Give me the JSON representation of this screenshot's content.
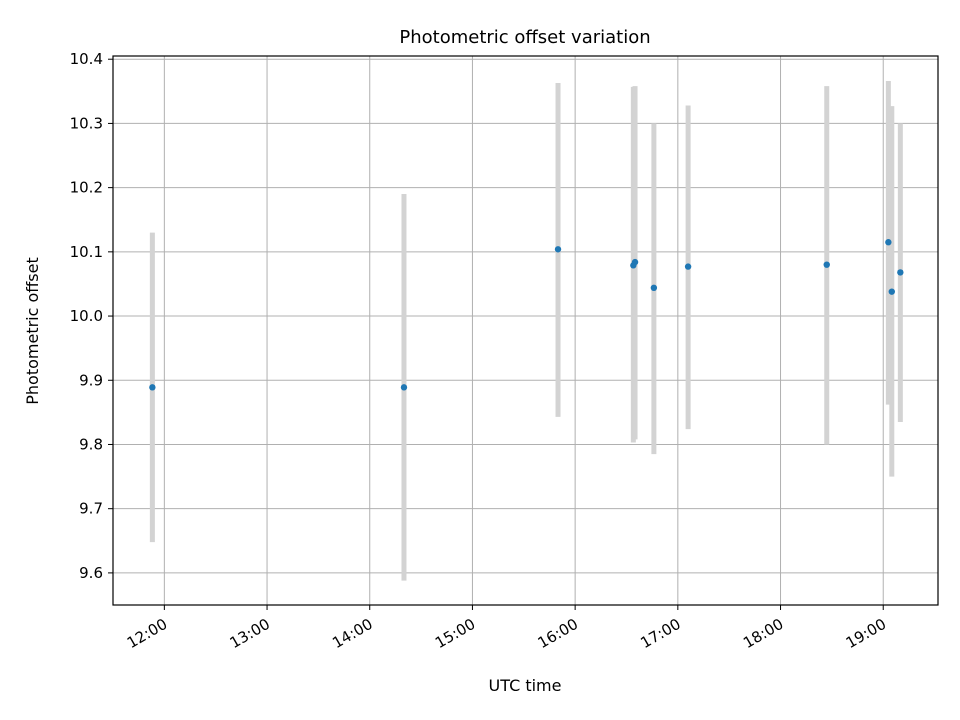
{
  "chart_data": {
    "type": "scatter",
    "title": "Photometric offset variation",
    "xlabel": "UTC time",
    "ylabel": "Photometric offset",
    "x_tick_labels": [
      "12:00",
      "13:00",
      "14:00",
      "15:00",
      "16:00",
      "17:00",
      "18:00",
      "19:00"
    ],
    "y_tick_labels": [
      "9.6",
      "9.7",
      "9.8",
      "9.9",
      "10.0",
      "10.1",
      "10.2",
      "10.3",
      "10.4"
    ],
    "xlim": [
      "11:30",
      "19:32"
    ],
    "ylim": [
      9.55,
      10.405
    ],
    "grid": true,
    "point_color": "#1f77b4",
    "errorbar_color": "#d3d3d3",
    "points": [
      {
        "time": "11:53",
        "value": 9.889,
        "err_low": 9.648,
        "err_high": 10.13
      },
      {
        "time": "14:20",
        "value": 9.889,
        "err_low": 9.588,
        "err_high": 10.19
      },
      {
        "time": "15:50",
        "value": 10.104,
        "err_low": 9.843,
        "err_high": 10.363
      },
      {
        "time": "16:34",
        "value": 10.079,
        "err_low": 9.803,
        "err_high": 10.357
      },
      {
        "time": "16:35",
        "value": 10.084,
        "err_low": 9.808,
        "err_high": 10.358
      },
      {
        "time": "16:46",
        "value": 10.044,
        "err_low": 9.785,
        "err_high": 10.3
      },
      {
        "time": "17:06",
        "value": 10.077,
        "err_low": 9.824,
        "err_high": 10.328
      },
      {
        "time": "18:27",
        "value": 10.08,
        "err_low": 9.8,
        "err_high": 10.358
      },
      {
        "time": "19:03",
        "value": 10.115,
        "err_low": 9.862,
        "err_high": 10.366
      },
      {
        "time": "19:05",
        "value": 10.038,
        "err_low": 9.75,
        "err_high": 10.327
      },
      {
        "time": "19:10",
        "value": 10.068,
        "err_low": 9.835,
        "err_high": 10.3
      }
    ]
  }
}
